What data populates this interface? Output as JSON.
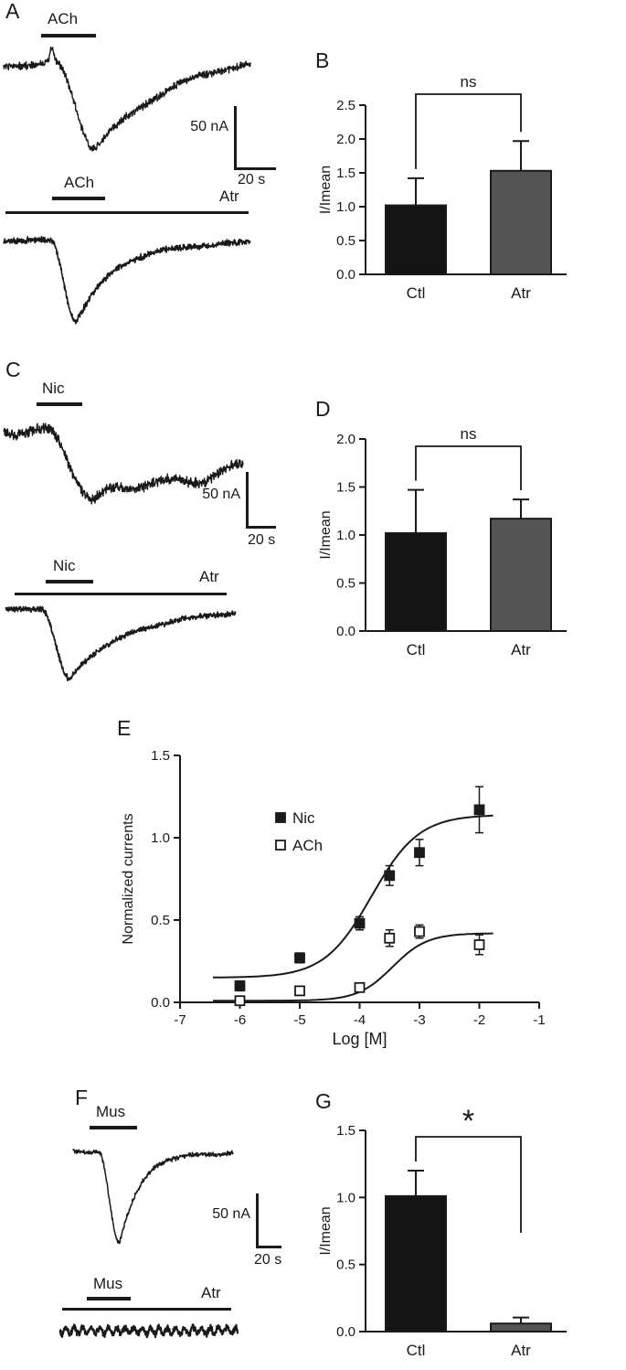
{
  "figure": {
    "background": "#ffffff",
    "ink": "#1a1a1a",
    "panels": {
      "A": {
        "label": "A",
        "top_trace": {
          "drug": "ACh"
        },
        "bottom_trace": {
          "drug": "ACh",
          "blocker": "Atr"
        },
        "scalebar": {
          "vertical": "50 nA",
          "horizontal": "20 s"
        }
      },
      "B": {
        "label": "B"
      },
      "C": {
        "label": "C",
        "top_trace": {
          "drug": "Nic"
        },
        "bottom_trace": {
          "drug": "Nic",
          "blocker": "Atr"
        },
        "scalebar": {
          "vertical": "50 nA",
          "horizontal": "20 s"
        }
      },
      "D": {
        "label": "D"
      },
      "E": {
        "label": "E"
      },
      "F": {
        "label": "F",
        "top_trace": {
          "drug": "Mus"
        },
        "bottom_trace": {
          "drug": "Mus",
          "blocker": "Atr"
        },
        "scalebar": {
          "vertical": "50 nA",
          "horizontal": "20 s"
        }
      },
      "G": {
        "label": "G"
      }
    }
  },
  "chart_data": [
    {
      "id": "B",
      "type": "bar",
      "categories": [
        "Ctl",
        "Atr"
      ],
      "values": [
        1.02,
        1.53
      ],
      "errors": [
        0.4,
        0.44
      ],
      "bar_colors": [
        "#141414",
        "#555555"
      ],
      "ylabel": "I/Imean",
      "ylim": [
        0,
        2.5
      ],
      "yticks": [
        0,
        0.5,
        1,
        1.5,
        2,
        2.5
      ],
      "significance": "ns"
    },
    {
      "id": "D",
      "type": "bar",
      "categories": [
        "Ctl",
        "Atr"
      ],
      "values": [
        1.02,
        1.17
      ],
      "errors": [
        0.45,
        0.2
      ],
      "bar_colors": [
        "#141414",
        "#555555"
      ],
      "ylabel": "I/Imean",
      "ylim": [
        0,
        2.0
      ],
      "yticks": [
        0,
        0.5,
        1,
        1.5,
        2
      ],
      "significance": "ns"
    },
    {
      "id": "E",
      "type": "scatter",
      "xlabel": "Log [M]",
      "ylabel": "Normalized currents",
      "xlim": [
        -7,
        -1
      ],
      "ylim": [
        0,
        1.5
      ],
      "xticks": [
        -7,
        -6,
        -5,
        -4,
        -3,
        -2,
        -1
      ],
      "yticks": [
        0,
        0.5,
        1,
        1.5
      ],
      "legend_position": "inside-left",
      "series": [
        {
          "name": "Nic",
          "marker": "filled-square",
          "x": [
            -6,
            -5,
            -4,
            -3.5,
            -3,
            -2
          ],
          "y": [
            0.1,
            0.27,
            0.48,
            0.77,
            0.91,
            1.17
          ],
          "err": [
            0.03,
            0.03,
            0.04,
            0.06,
            0.08,
            0.14
          ],
          "fit": {
            "bottom": 0.15,
            "top": 1.14,
            "logec50": -3.8,
            "hill": 1.1
          }
        },
        {
          "name": "ACh",
          "marker": "open-square",
          "x": [
            -6,
            -5,
            -4,
            -3.5,
            -3,
            -2
          ],
          "y": [
            0.01,
            0.07,
            0.09,
            0.39,
            0.43,
            0.35
          ],
          "err": [
            0.01,
            0.02,
            0.02,
            0.05,
            0.04,
            0.06
          ],
          "fit": {
            "bottom": 0.01,
            "top": 0.42,
            "logec50": -3.45,
            "hill": 1.5
          }
        }
      ]
    },
    {
      "id": "G",
      "type": "bar",
      "categories": [
        "Ctl",
        "Atr"
      ],
      "values": [
        1.01,
        0.06
      ],
      "errors": [
        0.19,
        0.045
      ],
      "bar_colors": [
        "#141414",
        "#555555"
      ],
      "ylabel": "I/Imean",
      "ylim": [
        0,
        1.5
      ],
      "yticks": [
        0,
        0.5,
        1,
        1.5
      ],
      "significance": "*"
    }
  ]
}
